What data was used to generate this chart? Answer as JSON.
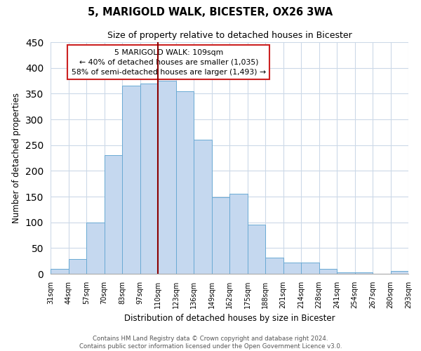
{
  "title": "5, MARIGOLD WALK, BICESTER, OX26 3WA",
  "subtitle": "Size of property relative to detached houses in Bicester",
  "xlabel": "Distribution of detached houses by size in Bicester",
  "ylabel": "Number of detached properties",
  "bin_labels": [
    "31sqm",
    "44sqm",
    "57sqm",
    "70sqm",
    "83sqm",
    "97sqm",
    "110sqm",
    "123sqm",
    "136sqm",
    "149sqm",
    "162sqm",
    "175sqm",
    "188sqm",
    "201sqm",
    "214sqm",
    "228sqm",
    "241sqm",
    "254sqm",
    "267sqm",
    "280sqm",
    "293sqm"
  ],
  "bar_heights": [
    10,
    28,
    100,
    230,
    365,
    370,
    375,
    355,
    260,
    148,
    155,
    95,
    32,
    22,
    22,
    10,
    3,
    3,
    0,
    5
  ],
  "bar_color": "#c5d8ef",
  "bar_edge_color": "#6aaad4",
  "vline_x": 6,
  "vline_color": "#8b0000",
  "ylim": [
    0,
    450
  ],
  "yticks": [
    0,
    50,
    100,
    150,
    200,
    250,
    300,
    350,
    400,
    450
  ],
  "annotation_title": "5 MARIGOLD WALK: 109sqm",
  "annotation_line1": "← 40% of detached houses are smaller (1,035)",
  "annotation_line2": "58% of semi-detached houses are larger (1,493) →",
  "annotation_box_facecolor": "#ffffff",
  "annotation_box_edgecolor": "#cc2222",
  "footer_line1": "Contains HM Land Registry data © Crown copyright and database right 2024.",
  "footer_line2": "Contains public sector information licensed under the Open Government Licence v3.0.",
  "background_color": "#ffffff",
  "grid_color": "#ccd9e8"
}
